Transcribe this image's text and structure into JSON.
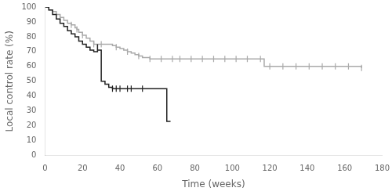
{
  "chart_data": {
    "type": "step",
    "xlabel": "Time (weeks)",
    "ylabel": "Local control rate (%)",
    "xlim": [
      0,
      180
    ],
    "ylim": [
      0,
      100
    ],
    "xticks": [
      0,
      20,
      40,
      60,
      80,
      100,
      120,
      140,
      160,
      180
    ],
    "yticks": [
      0,
      10,
      20,
      30,
      40,
      50,
      60,
      70,
      80,
      90,
      100
    ],
    "grid": false,
    "series": [
      {
        "type": "step",
        "color": "#222222",
        "line_style": "solid",
        "x": [
          0,
          2,
          4,
          6,
          8,
          10,
          12,
          14,
          16,
          18,
          20,
          22,
          24,
          26,
          28,
          28,
          30,
          30,
          32,
          34,
          36,
          38,
          40,
          42,
          44,
          46,
          48,
          50,
          52,
          54,
          56,
          58,
          60,
          62,
          64,
          65,
          67
        ],
        "values": [
          100,
          98,
          95,
          92,
          89,
          87,
          84,
          82,
          80,
          77,
          75,
          73,
          71,
          70,
          75,
          71,
          71,
          50,
          48,
          46,
          45,
          45,
          45,
          45,
          45,
          45,
          45,
          45,
          45,
          45,
          45,
          45,
          45,
          45,
          45,
          23,
          23
        ]
      },
      {
        "type": "scatter",
        "color": "#222222",
        "marker": "|",
        "x": [
          36,
          38,
          40,
          44,
          46,
          52
        ],
        "values": [
          45,
          45,
          45,
          45,
          45,
          45
        ]
      },
      {
        "type": "step",
        "color": "#aaaaaa",
        "line_style": "solid",
        "x": [
          0,
          2,
          4,
          6,
          8,
          10,
          12,
          14,
          16,
          17,
          18,
          20,
          22,
          24,
          26,
          28,
          30,
          32,
          34,
          36,
          38,
          40,
          42,
          44,
          46,
          48,
          50,
          52,
          54,
          56,
          58,
          60,
          62,
          64,
          66,
          68,
          70,
          75,
          80,
          85,
          90,
          95,
          100,
          105,
          110,
          115,
          117,
          120,
          125,
          130,
          135,
          140,
          145,
          150,
          155,
          160,
          165,
          169
        ],
        "values": [
          100,
          98,
          97,
          95,
          93,
          91,
          89,
          88,
          86,
          85,
          83,
          81,
          79,
          77,
          75,
          75,
          75,
          75,
          75,
          74,
          73,
          72,
          71,
          70,
          69,
          68,
          67,
          66,
          66,
          65,
          65,
          65,
          65,
          65,
          65,
          65,
          65,
          65,
          65,
          65,
          65,
          65,
          65,
          65,
          65,
          65,
          60,
          60,
          60,
          60,
          60,
          60,
          60,
          60,
          60,
          60,
          60,
          59
        ]
      },
      {
        "type": "scatter",
        "color": "#aaaaaa",
        "marker": "|",
        "x": [
          8,
          14,
          17,
          20,
          26,
          30,
          38,
          44,
          50,
          56,
          62,
          68,
          72,
          78,
          84,
          90,
          96,
          102,
          108,
          115,
          120,
          127,
          134,
          141,
          148,
          155,
          162,
          169
        ],
        "values": [
          93,
          88,
          85,
          81,
          75,
          75,
          73,
          70,
          67,
          65,
          65,
          65,
          65,
          65,
          65,
          65,
          65,
          65,
          65,
          65,
          60,
          60,
          60,
          60,
          60,
          60,
          60,
          59
        ]
      }
    ]
  }
}
